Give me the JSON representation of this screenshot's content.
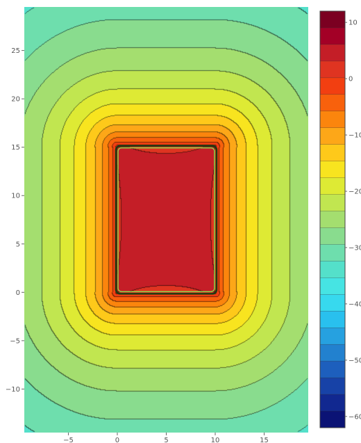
{
  "chart_data": {
    "type": "contour",
    "title": "",
    "xlabel": "",
    "ylabel": "",
    "x_range": [
      -9.5,
      19.5
    ],
    "y_range": [
      -14.5,
      29.5
    ],
    "x_ticks": [
      -5,
      0,
      5,
      10,
      15
    ],
    "y_ticks": [
      -10,
      -5,
      0,
      5,
      10,
      15,
      20,
      25
    ],
    "x_tick_labels": [
      "−5",
      "0",
      "5",
      "10",
      "15"
    ],
    "y_tick_labels": [
      "−10",
      "−5",
      "0",
      "5",
      "10",
      "15",
      "20",
      "25"
    ],
    "rectangle": {
      "x": [
        0,
        10
      ],
      "y": [
        0,
        15
      ]
    },
    "z_range": [
      -62,
      12
    ],
    "contour_step": 3,
    "colorbar": {
      "ticks": [
        10,
        0,
        -10,
        -20,
        -30,
        -40,
        -50,
        -60
      ],
      "tick_labels": [
        "10",
        "0",
        "−10",
        "−20",
        "−30",
        "−40",
        "−50",
        "−60"
      ],
      "colors": [
        "#67001f",
        "#a50026",
        "#d73027",
        "#f4400f",
        "#fb7a0a",
        "#fdae1a",
        "#fee21a",
        "#d6ec3a",
        "#a8de6a",
        "#7fdc9a",
        "#55e0c8",
        "#3fe6ee",
        "#29c0ee",
        "#2490d8",
        "#1d5cbb",
        "#13309a",
        "#0a1070"
      ]
    },
    "grid": false,
    "legend": "colorbar-right"
  }
}
